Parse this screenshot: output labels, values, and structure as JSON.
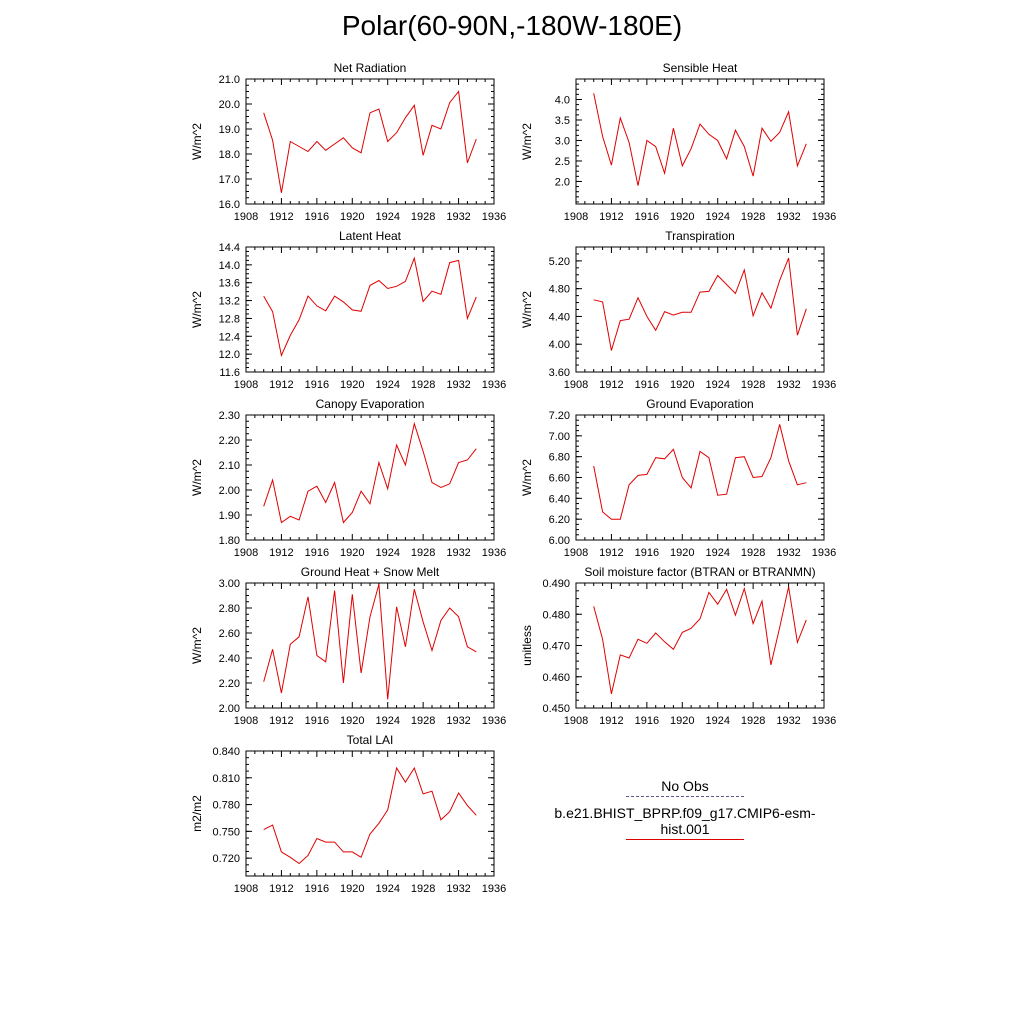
{
  "title": "Polar(60-90N,-180W-180E)",
  "legend": {
    "entries": [
      {
        "label": "No Obs",
        "color": "#5a5a8c",
        "style": "dashed"
      },
      {
        "label": "b.e21.BHIST_BPRP.f09_g17.CMIP6-esm-hist.001",
        "color": "#e00000",
        "style": "solid"
      }
    ]
  },
  "chart_data": [
    {
      "type": "line",
      "title": "Net Radiation",
      "ylabel": "W/m^2",
      "x": [
        1910,
        1911,
        1912,
        1913,
        1914,
        1915,
        1916,
        1917,
        1918,
        1919,
        1920,
        1921,
        1922,
        1923,
        1924,
        1925,
        1926,
        1927,
        1928,
        1929,
        1930,
        1931,
        1932,
        1933,
        1934
      ],
      "xlim": [
        1908,
        1936
      ],
      "xticks": [
        "1908",
        "1912",
        "1916",
        "1920",
        "1924",
        "1928",
        "1932",
        "1936"
      ],
      "ylim": [
        16.0,
        21.0
      ],
      "yticks": [
        "16.0",
        "17.0",
        "18.0",
        "19.0",
        "20.0",
        "21.0"
      ],
      "series": [
        {
          "color": "#e00000",
          "values": [
            19.65,
            18.55,
            16.45,
            18.5,
            18.3,
            18.1,
            18.5,
            18.15,
            18.4,
            18.65,
            18.25,
            18.05,
            19.65,
            19.8,
            18.5,
            18.85,
            19.45,
            19.95,
            17.95,
            19.15,
            19.0,
            20.05,
            20.5,
            17.65,
            18.6
          ]
        }
      ]
    },
    {
      "type": "line",
      "title": "Sensible Heat",
      "ylabel": "W/m^2",
      "x": [
        1910,
        1911,
        1912,
        1913,
        1914,
        1915,
        1916,
        1917,
        1918,
        1919,
        1920,
        1921,
        1922,
        1923,
        1924,
        1925,
        1926,
        1927,
        1928,
        1929,
        1930,
        1931,
        1932,
        1933,
        1934
      ],
      "xlim": [
        1908,
        1936
      ],
      "xticks": [
        "1908",
        "1912",
        "1916",
        "1920",
        "1924",
        "1928",
        "1932",
        "1936"
      ],
      "ylim": [
        1.45,
        4.5
      ],
      "yticks": [
        "2.0",
        "2.5",
        "3.0",
        "3.5",
        "4.0"
      ],
      "ytickvals": [
        2.0,
        2.5,
        3.0,
        3.5,
        4.0
      ],
      "series": [
        {
          "color": "#e00000",
          "values": [
            4.15,
            3.1,
            2.4,
            3.55,
            2.95,
            1.9,
            3.0,
            2.85,
            2.2,
            3.3,
            2.38,
            2.8,
            3.4,
            3.15,
            3.0,
            2.55,
            3.25,
            2.85,
            2.13,
            3.3,
            2.98,
            3.2,
            3.7,
            2.38,
            2.92
          ]
        }
      ]
    },
    {
      "type": "line",
      "title": "Latent Heat",
      "ylabel": "W/m^2",
      "x": [
        1910,
        1911,
        1912,
        1913,
        1914,
        1915,
        1916,
        1917,
        1918,
        1919,
        1920,
        1921,
        1922,
        1923,
        1924,
        1925,
        1926,
        1927,
        1928,
        1929,
        1930,
        1931,
        1932,
        1933,
        1934
      ],
      "xlim": [
        1908,
        1936
      ],
      "xticks": [
        "1908",
        "1912",
        "1916",
        "1920",
        "1924",
        "1928",
        "1932",
        "1936"
      ],
      "ylim": [
        11.6,
        14.4
      ],
      "yticks": [
        "11.6",
        "12.0",
        "12.4",
        "12.8",
        "13.2",
        "13.6",
        "14.0",
        "14.4"
      ],
      "series": [
        {
          "color": "#e00000",
          "values": [
            13.3,
            12.95,
            11.97,
            12.42,
            12.77,
            13.3,
            13.08,
            12.97,
            13.3,
            13.17,
            12.99,
            12.96,
            13.54,
            13.65,
            13.47,
            13.52,
            13.63,
            14.15,
            13.18,
            13.41,
            13.34,
            14.05,
            14.1,
            12.8,
            13.28
          ]
        }
      ]
    },
    {
      "type": "line",
      "title": "Transpiration",
      "ylabel": "W/m^2",
      "x": [
        1910,
        1911,
        1912,
        1913,
        1914,
        1915,
        1916,
        1917,
        1918,
        1919,
        1920,
        1921,
        1922,
        1923,
        1924,
        1925,
        1926,
        1927,
        1928,
        1929,
        1930,
        1931,
        1932,
        1933,
        1934
      ],
      "xlim": [
        1908,
        1936
      ],
      "xticks": [
        "1908",
        "1912",
        "1916",
        "1920",
        "1924",
        "1928",
        "1932",
        "1936"
      ],
      "ylim": [
        3.6,
        5.4
      ],
      "yticks": [
        "3.60",
        "4.00",
        "4.40",
        "4.80",
        "5.20"
      ],
      "ytickvals": [
        3.6,
        4.0,
        4.4,
        4.8,
        5.2
      ],
      "series": [
        {
          "color": "#e00000",
          "values": [
            4.64,
            4.61,
            3.91,
            4.34,
            4.36,
            4.67,
            4.4,
            4.2,
            4.47,
            4.42,
            4.46,
            4.46,
            4.75,
            4.76,
            4.99,
            4.86,
            4.73,
            5.07,
            4.41,
            4.74,
            4.52,
            4.92,
            5.24,
            4.13,
            4.51
          ]
        }
      ]
    },
    {
      "type": "line",
      "title": "Canopy Evaporation",
      "ylabel": "W/m^2",
      "x": [
        1910,
        1911,
        1912,
        1913,
        1914,
        1915,
        1916,
        1917,
        1918,
        1919,
        1920,
        1921,
        1922,
        1923,
        1924,
        1925,
        1926,
        1927,
        1928,
        1929,
        1930,
        1931,
        1932,
        1933,
        1934
      ],
      "xlim": [
        1908,
        1936
      ],
      "xticks": [
        "1908",
        "1912",
        "1916",
        "1920",
        "1924",
        "1928",
        "1932",
        "1936"
      ],
      "ylim": [
        1.8,
        2.3
      ],
      "yticks": [
        "1.80",
        "1.90",
        "2.00",
        "2.10",
        "2.20",
        "2.30"
      ],
      "series": [
        {
          "color": "#e00000",
          "values": [
            1.935,
            2.04,
            1.87,
            1.895,
            1.88,
            1.995,
            2.015,
            1.95,
            2.03,
            1.87,
            1.91,
            1.995,
            1.945,
            2.11,
            2.005,
            2.18,
            2.1,
            2.265,
            2.155,
            2.03,
            2.01,
            2.025,
            2.11,
            2.12,
            2.165
          ]
        }
      ]
    },
    {
      "type": "line",
      "title": "Ground Evaporation",
      "ylabel": "W/m^2",
      "x": [
        1910,
        1911,
        1912,
        1913,
        1914,
        1915,
        1916,
        1917,
        1918,
        1919,
        1920,
        1921,
        1922,
        1923,
        1924,
        1925,
        1926,
        1927,
        1928,
        1929,
        1930,
        1931,
        1932,
        1933,
        1934
      ],
      "xlim": [
        1908,
        1936
      ],
      "xticks": [
        "1908",
        "1912",
        "1916",
        "1920",
        "1924",
        "1928",
        "1932",
        "1936"
      ],
      "ylim": [
        6.0,
        7.2
      ],
      "yticks": [
        "6.00",
        "6.20",
        "6.40",
        "6.60",
        "6.80",
        "7.00",
        "7.20"
      ],
      "series": [
        {
          "color": "#e00000",
          "values": [
            6.71,
            6.27,
            6.2,
            6.2,
            6.53,
            6.62,
            6.63,
            6.79,
            6.78,
            6.87,
            6.6,
            6.5,
            6.85,
            6.79,
            6.43,
            6.44,
            6.79,
            6.8,
            6.6,
            6.61,
            6.79,
            7.11,
            6.76,
            6.53,
            6.55
          ]
        }
      ]
    },
    {
      "type": "line",
      "title": "Ground Heat + Snow Melt",
      "ylabel": "W/m^2",
      "x": [
        1910,
        1911,
        1912,
        1913,
        1914,
        1915,
        1916,
        1917,
        1918,
        1919,
        1920,
        1921,
        1922,
        1923,
        1924,
        1925,
        1926,
        1927,
        1928,
        1929,
        1930,
        1931,
        1932,
        1933,
        1934
      ],
      "xlim": [
        1908,
        1936
      ],
      "xticks": [
        "1908",
        "1912",
        "1916",
        "1920",
        "1924",
        "1928",
        "1932",
        "1936"
      ],
      "ylim": [
        2.0,
        3.0
      ],
      "yticks": [
        "2.00",
        "2.20",
        "2.40",
        "2.60",
        "2.80",
        "3.00"
      ],
      "series": [
        {
          "color": "#e00000",
          "values": [
            2.21,
            2.47,
            2.12,
            2.51,
            2.57,
            2.89,
            2.42,
            2.37,
            2.94,
            2.2,
            2.91,
            2.28,
            2.73,
            2.99,
            2.07,
            2.81,
            2.49,
            2.95,
            2.69,
            2.46,
            2.7,
            2.8,
            2.73,
            2.49,
            2.45
          ]
        }
      ]
    },
    {
      "type": "line",
      "title": "Soil moisture factor (BTRAN or BTRANMN)",
      "ylabel": "unitless",
      "x": [
        1910,
        1911,
        1912,
        1913,
        1914,
        1915,
        1916,
        1917,
        1918,
        1919,
        1920,
        1921,
        1922,
        1923,
        1924,
        1925,
        1926,
        1927,
        1928,
        1929,
        1930,
        1931,
        1932,
        1933,
        1934
      ],
      "xlim": [
        1908,
        1936
      ],
      "xticks": [
        "1908",
        "1912",
        "1916",
        "1920",
        "1924",
        "1928",
        "1932",
        "1936"
      ],
      "ylim": [
        0.45,
        0.49
      ],
      "yticks": [
        "0.450",
        "0.460",
        "0.470",
        "0.480",
        "0.490"
      ],
      "series": [
        {
          "color": "#e00000",
          "values": [
            0.4825,
            0.472,
            0.4545,
            0.467,
            0.466,
            0.472,
            0.4707,
            0.474,
            0.4712,
            0.4688,
            0.4742,
            0.4755,
            0.4785,
            0.487,
            0.4832,
            0.488,
            0.4797,
            0.4882,
            0.477,
            0.4842,
            0.4638,
            0.4758,
            0.4888,
            0.471,
            0.4782
          ]
        }
      ]
    },
    {
      "type": "line",
      "title": "Total LAI",
      "ylabel": "m2/m2",
      "x": [
        1910,
        1911,
        1912,
        1913,
        1914,
        1915,
        1916,
        1917,
        1918,
        1919,
        1920,
        1921,
        1922,
        1923,
        1924,
        1925,
        1926,
        1927,
        1928,
        1929,
        1930,
        1931,
        1932,
        1933,
        1934
      ],
      "xlim": [
        1908,
        1936
      ],
      "xticks": [
        "1908",
        "1912",
        "1916",
        "1920",
        "1924",
        "1928",
        "1932",
        "1936"
      ],
      "ylim": [
        0.7,
        0.84
      ],
      "yticks": [
        "0.720",
        "0.750",
        "0.780",
        "0.810",
        "0.840"
      ],
      "ytickvals": [
        0.72,
        0.75,
        0.78,
        0.81,
        0.84
      ],
      "series": [
        {
          "color": "#e00000",
          "values": [
            0.752,
            0.757,
            0.727,
            0.721,
            0.714,
            0.723,
            0.742,
            0.738,
            0.738,
            0.727,
            0.727,
            0.721,
            0.747,
            0.759,
            0.774,
            0.821,
            0.805,
            0.821,
            0.792,
            0.795,
            0.763,
            0.772,
            0.793,
            0.779,
            0.768
          ]
        }
      ]
    }
  ]
}
